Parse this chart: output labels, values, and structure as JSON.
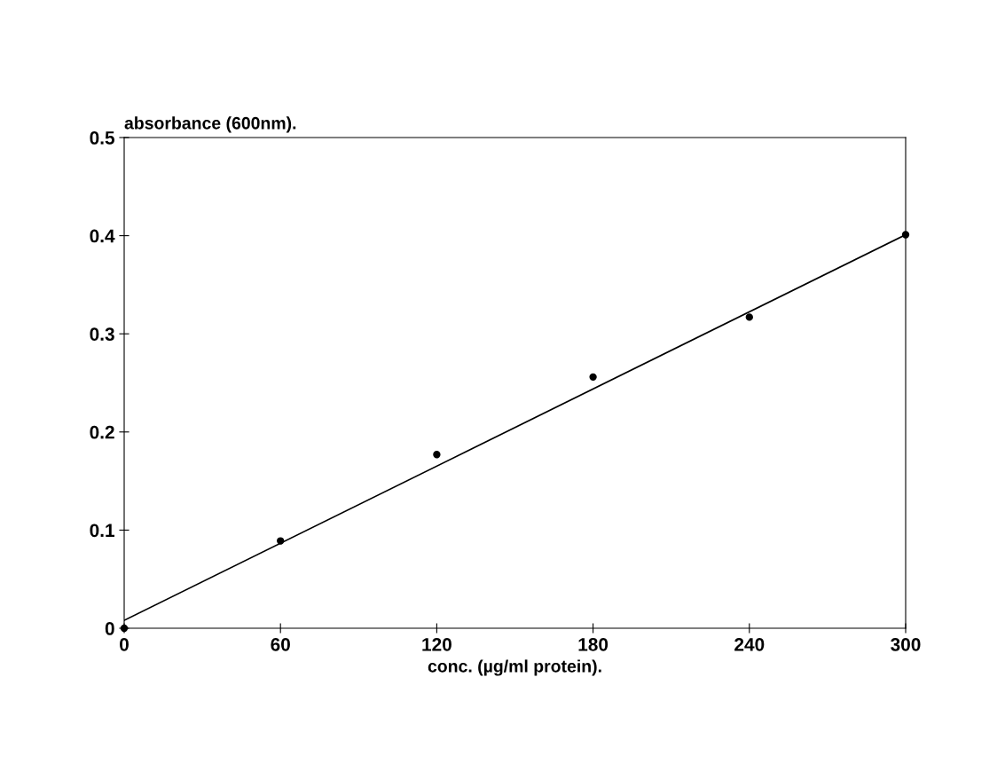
{
  "chart_data": {
    "type": "scatter",
    "xlabel": "conc. (µg/ml protein).",
    "ylabel": "absorbance (600nm).",
    "x": [
      0,
      60,
      120,
      180,
      240,
      300
    ],
    "series": [
      {
        "color": "#000000",
        "values": [
          0.0,
          0.089,
          0.177,
          0.256,
          0.317,
          0.401
        ]
      },
      {
        "type": "line",
        "color": "#000000",
        "x": [
          0,
          300
        ],
        "values": [
          0.008,
          0.401
        ],
        "line_style": "solid",
        "marker": "none"
      }
    ],
    "xlim": [
      0,
      300
    ],
    "xticks": [
      0,
      60,
      120,
      180,
      240,
      300
    ],
    "ylim": [
      0,
      0.5
    ],
    "yticks": [
      {
        "value": 0,
        "label": "0"
      },
      0.1,
      0.2,
      0.3,
      0.4,
      0.5
    ],
    "grid": false,
    "legend": false
  }
}
